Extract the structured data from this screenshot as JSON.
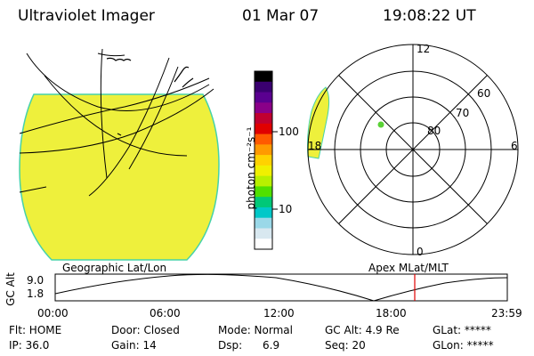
{
  "header": {
    "title": "Ultraviolet Imager",
    "date": "01 Mar 07",
    "time": "19:08:22 UT"
  },
  "colorbar": {
    "unit_label": "photon cm⁻²s⁻¹",
    "ticks": [
      "100",
      "10"
    ],
    "colors": [
      "#000000",
      "#3a0070",
      "#5a0090",
      "#8a0088",
      "#c00030",
      "#e00000",
      "#ff5a00",
      "#ff9a00",
      "#ffd200",
      "#f0f000",
      "#b8f000",
      "#50e000",
      "#00c878",
      "#00c8c8",
      "#9ad8e8",
      "#d8e8f0",
      "#ffffff"
    ]
  },
  "left_panel": {
    "label": "Geographic Lat/Lon",
    "fill_color": "#eef03c",
    "edge_color": "#46d2aa"
  },
  "polar_plot": {
    "label": "Apex MLat/MLT",
    "mlt_labels": {
      "top": "12",
      "left": "18",
      "right": "6",
      "bottom": "0"
    },
    "lat_labels": [
      "60",
      "70",
      "80"
    ],
    "spot_color": "#5ad236",
    "patch_color": "#eef03c"
  },
  "altitude_plot": {
    "ylabel": "GC Alt",
    "yticks": [
      "9.0",
      "1.8"
    ],
    "xticks": [
      "00:00",
      "06:00",
      "12:00",
      "18:00",
      "23:59"
    ],
    "marker_time": "19:08",
    "marker_color": "#e00000"
  },
  "info": {
    "flt": "Flt: HOME",
    "ip": "IP: 36.0",
    "door": "Door: Closed",
    "gain": "Gain: 14",
    "mode": "Mode: Normal",
    "dsp": "Dsp:      6.9",
    "gcalt": "GC Alt: 4.9 Re",
    "seq": "Seq: 20",
    "glat": "GLat: *****",
    "glon": "GLon: *****"
  }
}
